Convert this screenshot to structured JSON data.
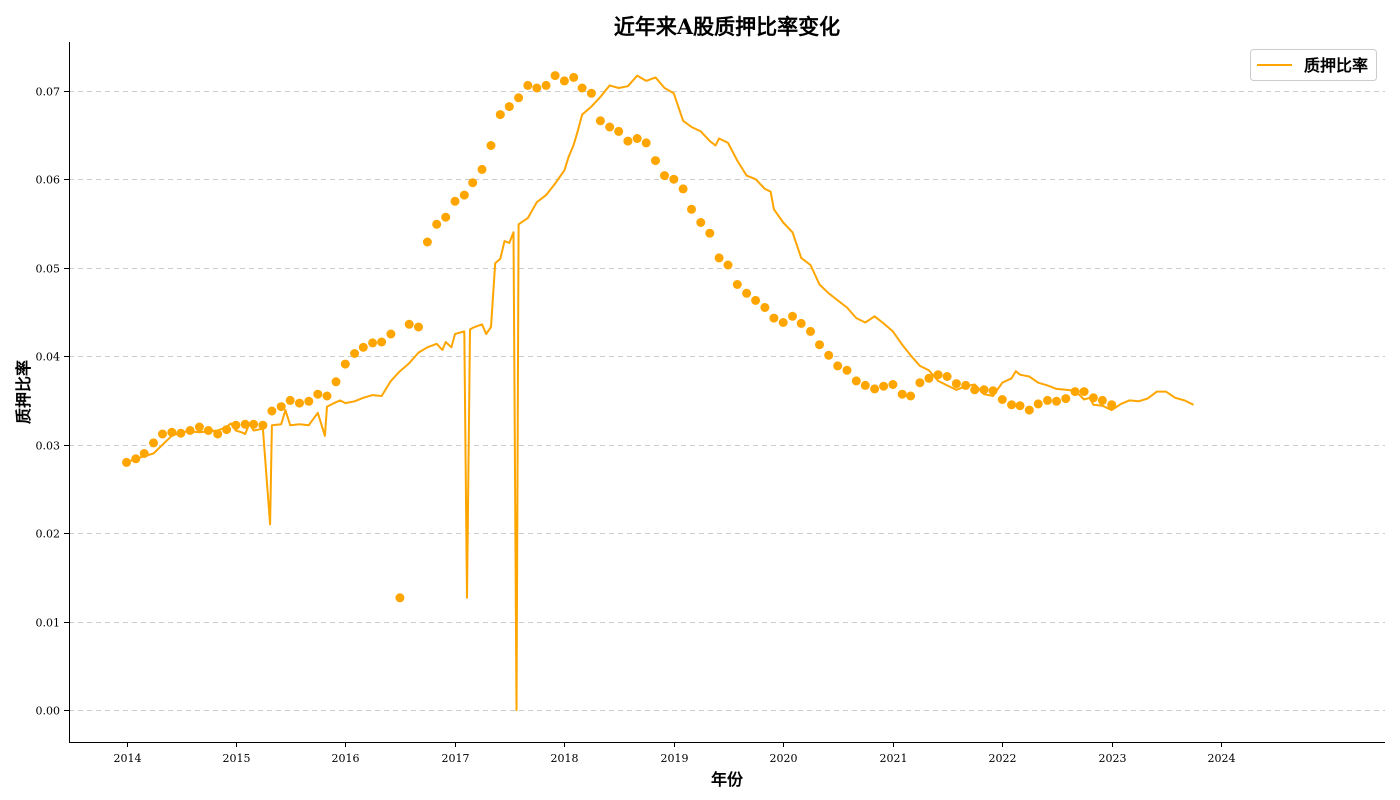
{
  "chart_data": {
    "type": "line",
    "title": "近年来A股质押比率变化",
    "xlabel": "年份",
    "ylabel": "质押比率",
    "legend_position": "top-right",
    "grid": "horizontal-dashed",
    "color": "#FFA500",
    "xlim": [
      "2013-06-23",
      "2025-07-01"
    ],
    "ylim": [
      -0.0036,
      0.0755
    ],
    "x_ticks": [
      "2014",
      "2015",
      "2016",
      "2017",
      "2018",
      "2019",
      "2020",
      "2021",
      "2022",
      "2023",
      "2024"
    ],
    "y_ticks": [
      "0.00",
      "0.01",
      "0.02",
      "0.03",
      "0.04",
      "0.05",
      "0.06",
      "0.07"
    ],
    "series": [
      {
        "name": "质押比率",
        "line": [
          [
            "2014-01-01",
            0.028
          ],
          [
            "2014-02-01",
            0.0284
          ],
          [
            "2014-03-01",
            0.0287
          ],
          [
            "2014-04-01",
            0.029
          ],
          [
            "2014-05-01",
            0.03
          ],
          [
            "2014-06-01",
            0.031
          ],
          [
            "2014-07-01",
            0.0314
          ],
          [
            "2014-08-01",
            0.0315
          ],
          [
            "2014-09-01",
            0.0314
          ],
          [
            "2014-10-01",
            0.0315
          ],
          [
            "2014-11-01",
            0.0316
          ],
          [
            "2014-12-01",
            0.032
          ],
          [
            "2014-12-15",
            0.0324
          ],
          [
            "2015-01-01",
            0.0316
          ],
          [
            "2015-01-20",
            0.0314
          ],
          [
            "2015-02-01",
            0.0312
          ],
          [
            "2015-02-15",
            0.0324
          ],
          [
            "2015-03-01",
            0.0316
          ],
          [
            "2015-04-01",
            0.0318
          ],
          [
            "2015-04-25",
            0.021
          ],
          [
            "2015-05-01",
            0.0322
          ],
          [
            "2015-06-01",
            0.0323
          ],
          [
            "2015-06-15",
            0.0339
          ],
          [
            "2015-07-01",
            0.0322
          ],
          [
            "2015-08-01",
            0.0323
          ],
          [
            "2015-09-01",
            0.0322
          ],
          [
            "2015-10-01",
            0.0336
          ],
          [
            "2015-10-25",
            0.031
          ],
          [
            "2015-11-01",
            0.0343
          ],
          [
            "2015-12-01",
            0.0348
          ],
          [
            "2015-12-15",
            0.035
          ],
          [
            "2016-01-01",
            0.0347
          ],
          [
            "2016-02-01",
            0.0349
          ],
          [
            "2016-03-01",
            0.0353
          ],
          [
            "2016-04-01",
            0.0356
          ],
          [
            "2016-05-01",
            0.0355
          ],
          [
            "2016-06-01",
            0.0372
          ],
          [
            "2016-07-01",
            0.0383
          ],
          [
            "2016-08-01",
            0.0392
          ],
          [
            "2016-09-01",
            0.0404
          ],
          [
            "2016-10-01",
            0.041
          ],
          [
            "2016-11-01",
            0.0414
          ],
          [
            "2016-11-20",
            0.0407
          ],
          [
            "2016-12-01",
            0.0416
          ],
          [
            "2016-12-20",
            0.041
          ],
          [
            "2017-01-01",
            0.0425
          ],
          [
            "2017-02-01",
            0.0428
          ],
          [
            "2017-02-10",
            0.0127
          ],
          [
            "2017-02-20",
            0.043
          ],
          [
            "2017-03-01",
            0.0432
          ],
          [
            "2017-04-01",
            0.0436
          ],
          [
            "2017-04-15",
            0.0425
          ],
          [
            "2017-05-01",
            0.0433
          ],
          [
            "2017-05-15",
            0.0505
          ],
          [
            "2017-06-01",
            0.051
          ],
          [
            "2017-06-15",
            0.053
          ],
          [
            "2017-07-01",
            0.0528
          ],
          [
            "2017-07-15",
            0.054
          ],
          [
            "2017-07-25",
            0.0
          ],
          [
            "2017-08-01",
            0.0549
          ],
          [
            "2017-09-01",
            0.0556
          ],
          [
            "2017-10-01",
            0.0574
          ],
          [
            "2017-11-01",
            0.0582
          ],
          [
            "2017-12-01",
            0.0595
          ],
          [
            "2018-01-01",
            0.061
          ],
          [
            "2018-01-15",
            0.0625
          ],
          [
            "2018-02-01",
            0.0639
          ],
          [
            "2018-02-15",
            0.0655
          ],
          [
            "2018-03-01",
            0.0673
          ],
          [
            "2018-04-01",
            0.0682
          ],
          [
            "2018-05-01",
            0.0693
          ],
          [
            "2018-06-01",
            0.0706
          ],
          [
            "2018-07-01",
            0.0703
          ],
          [
            "2018-08-01",
            0.0705
          ],
          [
            "2018-09-01",
            0.0717
          ],
          [
            "2018-10-01",
            0.0711
          ],
          [
            "2018-11-01",
            0.0715
          ],
          [
            "2018-12-01",
            0.0703
          ],
          [
            "2019-01-01",
            0.0697
          ],
          [
            "2019-02-01",
            0.0666
          ],
          [
            "2019-03-01",
            0.0659
          ],
          [
            "2019-04-01",
            0.0654
          ],
          [
            "2019-05-01",
            0.0643
          ],
          [
            "2019-05-20",
            0.0638
          ],
          [
            "2019-06-01",
            0.0646
          ],
          [
            "2019-07-01",
            0.0641
          ],
          [
            "2019-08-01",
            0.0621
          ],
          [
            "2019-09-01",
            0.0604
          ],
          [
            "2019-10-01",
            0.06
          ],
          [
            "2019-11-01",
            0.0589
          ],
          [
            "2019-11-20",
            0.0586
          ],
          [
            "2019-12-01",
            0.0566
          ],
          [
            "2020-01-01",
            0.0551
          ],
          [
            "2020-02-01",
            0.054
          ],
          [
            "2020-03-01",
            0.0511
          ],
          [
            "2020-04-01",
            0.0503
          ],
          [
            "2020-05-01",
            0.0481
          ],
          [
            "2020-06-01",
            0.0471
          ],
          [
            "2020-07-01",
            0.0463
          ],
          [
            "2020-08-01",
            0.0455
          ],
          [
            "2020-09-01",
            0.0443
          ],
          [
            "2020-10-01",
            0.0438
          ],
          [
            "2020-11-01",
            0.0445
          ],
          [
            "2020-12-01",
            0.0437
          ],
          [
            "2021-01-01",
            0.0428
          ],
          [
            "2021-02-01",
            0.0413
          ],
          [
            "2021-03-01",
            0.0401
          ],
          [
            "2021-04-01",
            0.0389
          ],
          [
            "2021-05-01",
            0.0384
          ],
          [
            "2021-06-01",
            0.0372
          ],
          [
            "2021-07-01",
            0.0367
          ],
          [
            "2021-08-01",
            0.0362
          ],
          [
            "2021-09-01",
            0.0366
          ],
          [
            "2021-10-01",
            0.0368
          ],
          [
            "2021-11-01",
            0.0357
          ],
          [
            "2021-12-01",
            0.0355
          ],
          [
            "2022-01-01",
            0.037
          ],
          [
            "2022-02-01",
            0.0375
          ],
          [
            "2022-02-15",
            0.0383
          ],
          [
            "2022-03-01",
            0.0379
          ],
          [
            "2022-04-01",
            0.0377
          ],
          [
            "2022-05-01",
            0.037
          ],
          [
            "2022-06-01",
            0.0367
          ],
          [
            "2022-07-01",
            0.0363
          ],
          [
            "2022-08-01",
            0.0362
          ],
          [
            "2022-09-01",
            0.0361
          ],
          [
            "2022-10-01",
            0.0351
          ],
          [
            "2022-10-20",
            0.0353
          ],
          [
            "2022-11-01",
            0.0345
          ],
          [
            "2022-12-01",
            0.0344
          ],
          [
            "2023-01-01",
            0.0339
          ],
          [
            "2023-02-01",
            0.0346
          ],
          [
            "2023-03-01",
            0.035
          ],
          [
            "2023-04-01",
            0.0349
          ],
          [
            "2023-05-01",
            0.0352
          ],
          [
            "2023-06-01",
            0.036
          ],
          [
            "2023-07-01",
            0.036
          ],
          [
            "2023-08-01",
            0.0353
          ],
          [
            "2023-09-01",
            0.035
          ],
          [
            "2023-10-01",
            0.0345
          ]
        ],
        "markers": [
          [
            "2014-01-01",
            0.028
          ],
          [
            "2014-02-01",
            0.0284
          ],
          [
            "2014-03-01",
            0.029
          ],
          [
            "2014-04-01",
            0.0302
          ],
          [
            "2014-05-01",
            0.0312
          ],
          [
            "2014-06-01",
            0.0314
          ],
          [
            "2014-07-01",
            0.0313
          ],
          [
            "2014-08-01",
            0.0316
          ],
          [
            "2014-09-01",
            0.032
          ],
          [
            "2014-10-01",
            0.0316
          ],
          [
            "2014-11-01",
            0.0312
          ],
          [
            "2014-12-01",
            0.0317
          ],
          [
            "2015-01-01",
            0.0322
          ],
          [
            "2015-02-01",
            0.0323
          ],
          [
            "2015-03-01",
            0.0323
          ],
          [
            "2015-04-01",
            0.0322
          ],
          [
            "2015-05-01",
            0.0338
          ],
          [
            "2015-06-01",
            0.0343
          ],
          [
            "2015-07-01",
            0.035
          ],
          [
            "2015-08-01",
            0.0347
          ],
          [
            "2015-09-01",
            0.0349
          ],
          [
            "2015-10-01",
            0.0357
          ],
          [
            "2015-11-01",
            0.0355
          ],
          [
            "2015-12-01",
            0.0371
          ],
          [
            "2016-01-01",
            0.0391
          ],
          [
            "2016-02-01",
            0.0403
          ],
          [
            "2016-03-01",
            0.041
          ],
          [
            "2016-04-01",
            0.0415
          ],
          [
            "2016-05-01",
            0.0416
          ],
          [
            "2016-06-01",
            0.0425
          ],
          [
            "2016-07-01",
            0.0127
          ],
          [
            "2016-08-01",
            0.0436
          ],
          [
            "2016-09-01",
            0.0433
          ],
          [
            "2016-10-01",
            0.0529
          ],
          [
            "2016-11-01",
            0.0549
          ],
          [
            "2016-12-01",
            0.0557
          ],
          [
            "2017-01-01",
            0.0575
          ],
          [
            "2017-02-01",
            0.0582
          ],
          [
            "2017-03-01",
            0.0596
          ],
          [
            "2017-04-01",
            0.0611
          ],
          [
            "2017-05-01",
            0.0638
          ],
          [
            "2017-06-01",
            0.0673
          ],
          [
            "2017-07-01",
            0.0682
          ],
          [
            "2017-08-01",
            0.0692
          ],
          [
            "2017-09-01",
            0.0706
          ],
          [
            "2017-10-01",
            0.0703
          ],
          [
            "2017-11-01",
            0.0706
          ],
          [
            "2017-12-01",
            0.0717
          ],
          [
            "2018-01-01",
            0.0711
          ],
          [
            "2018-02-01",
            0.0715
          ],
          [
            "2018-03-01",
            0.0703
          ],
          [
            "2018-04-01",
            0.0697
          ],
          [
            "2018-05-01",
            0.0666
          ],
          [
            "2018-06-01",
            0.0659
          ],
          [
            "2018-07-01",
            0.0654
          ],
          [
            "2018-08-01",
            0.0643
          ],
          [
            "2018-09-01",
            0.0646
          ],
          [
            "2018-10-01",
            0.0641
          ],
          [
            "2018-11-01",
            0.0621
          ],
          [
            "2018-12-01",
            0.0604
          ],
          [
            "2019-01-01",
            0.06
          ],
          [
            "2019-02-01",
            0.0589
          ],
          [
            "2019-03-01",
            0.0566
          ],
          [
            "2019-04-01",
            0.0551
          ],
          [
            "2019-05-01",
            0.0539
          ],
          [
            "2019-06-01",
            0.0511
          ],
          [
            "2019-07-01",
            0.0503
          ],
          [
            "2019-08-01",
            0.0481
          ],
          [
            "2019-09-01",
            0.0471
          ],
          [
            "2019-10-01",
            0.0463
          ],
          [
            "2019-11-01",
            0.0455
          ],
          [
            "2019-12-01",
            0.0443
          ],
          [
            "2020-01-01",
            0.0438
          ],
          [
            "2020-02-01",
            0.0445
          ],
          [
            "2020-03-01",
            0.0437
          ],
          [
            "2020-04-01",
            0.0428
          ],
          [
            "2020-05-01",
            0.0413
          ],
          [
            "2020-06-01",
            0.0401
          ],
          [
            "2020-07-01",
            0.0389
          ],
          [
            "2020-08-01",
            0.0384
          ],
          [
            "2020-09-01",
            0.0372
          ],
          [
            "2020-10-01",
            0.0367
          ],
          [
            "2020-11-01",
            0.0363
          ],
          [
            "2020-12-01",
            0.0366
          ],
          [
            "2021-01-01",
            0.0368
          ],
          [
            "2021-02-01",
            0.0357
          ],
          [
            "2021-03-01",
            0.0355
          ],
          [
            "2021-04-01",
            0.037
          ],
          [
            "2021-05-01",
            0.0375
          ],
          [
            "2021-06-01",
            0.0379
          ],
          [
            "2021-07-01",
            0.0377
          ],
          [
            "2021-08-01",
            0.0369
          ],
          [
            "2021-09-01",
            0.0367
          ],
          [
            "2021-10-01",
            0.0362
          ],
          [
            "2021-11-01",
            0.0362
          ],
          [
            "2021-12-01",
            0.0361
          ],
          [
            "2022-01-01",
            0.0351
          ],
          [
            "2022-02-01",
            0.0345
          ],
          [
            "2022-03-01",
            0.0344
          ],
          [
            "2022-04-01",
            0.0339
          ],
          [
            "2022-05-01",
            0.0346
          ],
          [
            "2022-06-01",
            0.035
          ],
          [
            "2022-07-01",
            0.0349
          ],
          [
            "2022-08-01",
            0.0352
          ],
          [
            "2022-09-01",
            0.036
          ],
          [
            "2022-10-01",
            0.036
          ],
          [
            "2022-11-01",
            0.0353
          ],
          [
            "2022-12-01",
            0.035
          ],
          [
            "2023-01-01",
            0.0345
          ]
        ]
      }
    ]
  }
}
